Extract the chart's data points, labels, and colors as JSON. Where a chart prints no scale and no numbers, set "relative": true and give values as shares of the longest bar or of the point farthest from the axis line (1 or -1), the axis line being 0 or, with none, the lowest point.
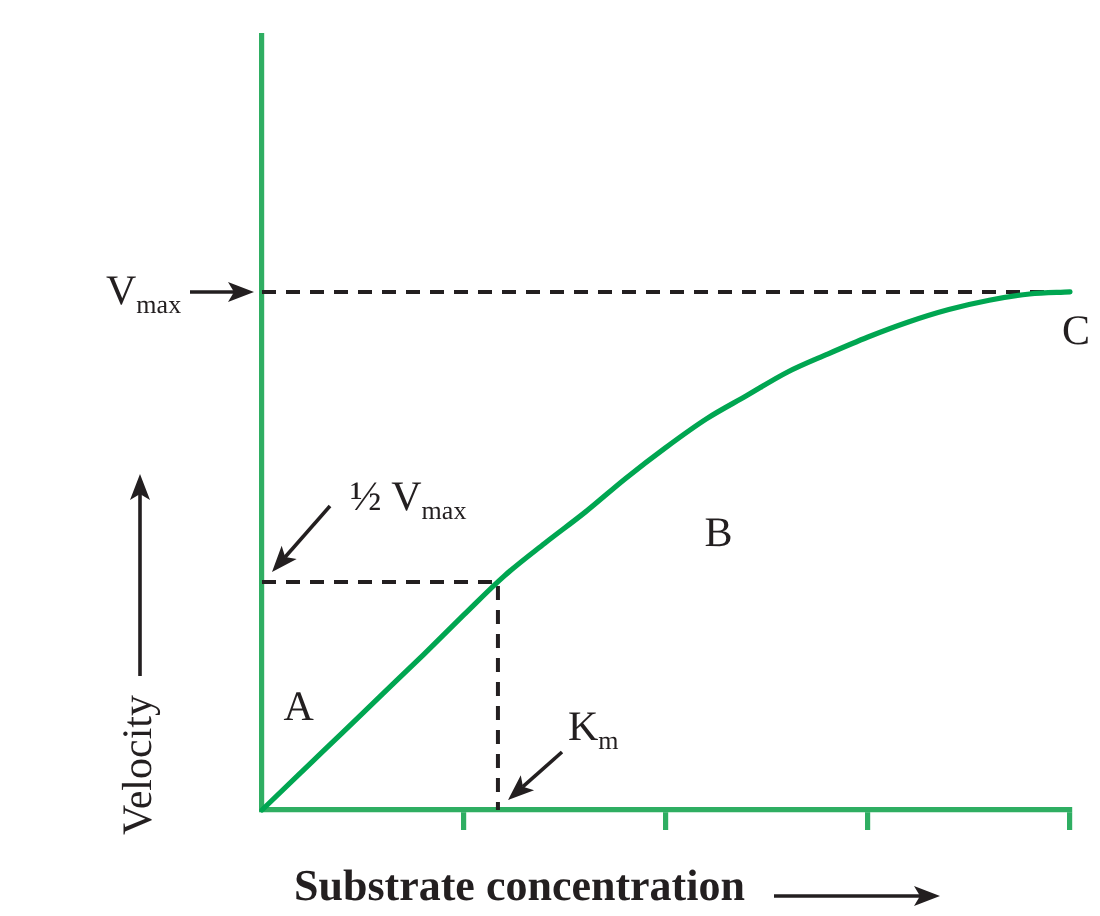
{
  "chart_data": {
    "type": "line",
    "xlabel": "Substrate concentration",
    "ylabel": "Velocity",
    "relative": true,
    "categories": [
      null,
      null,
      null,
      null,
      null,
      null,
      null,
      null,
      null,
      null,
      null,
      null,
      null,
      null,
      null,
      null,
      null,
      null,
      null,
      null,
      null
    ],
    "values": [
      0,
      0.075,
      0.15,
      0.225,
      0.3,
      0.377,
      0.452,
      0.515,
      0.575,
      0.64,
      0.7,
      0.755,
      0.8,
      0.845,
      0.88,
      0.913,
      0.942,
      0.966,
      0.984,
      0.996,
      1
    ],
    "color": "#00a651",
    "marker": "none",
    "line_style": "solid",
    "legend": false,
    "ref_lines": [
      {
        "axis": "y",
        "value": 1,
        "label": "V$_{max}$",
        "color": "#231f20",
        "line_style": "dashed"
      },
      {
        "axis": "y",
        "value": 0.44,
        "label": "½ V$_{max}$",
        "color": "#231f20",
        "line_style": "dashed"
      }
    ],
    "annotations": [
      "A",
      "B",
      "C",
      "K$_{m}$"
    ]
  }
}
